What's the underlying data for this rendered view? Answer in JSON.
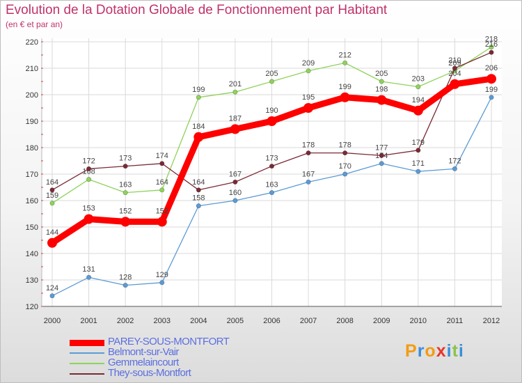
{
  "chart_data": {
    "type": "line",
    "title": "Evolution de la Dotation Globale de Fonctionnement par Habitant",
    "subtitle": "(en € et par an)",
    "xlabel": "",
    "ylabel": "",
    "categories": [
      "2000",
      "2001",
      "2002",
      "2003",
      "2004",
      "2005",
      "2006",
      "2007",
      "2008",
      "2009",
      "2010",
      "2011",
      "2012"
    ],
    "ylim": [
      120,
      220
    ],
    "yticks": [
      120,
      130,
      140,
      150,
      160,
      170,
      180,
      190,
      200,
      210,
      220
    ],
    "grid": true,
    "legend_position": "bottom-left",
    "series": [
      {
        "name": "PAREY-SOUS-MONTFORT",
        "color": "#ff0000",
        "values": [
          144,
          153,
          152,
          152,
          184,
          187,
          190,
          195,
          199,
          198,
          194,
          204,
          206
        ]
      },
      {
        "name": "Belmont-sur-Vair",
        "color": "#5b9bd5",
        "values": [
          124,
          131,
          128,
          129,
          158,
          160,
          163,
          167,
          170,
          174,
          171,
          172,
          199
        ]
      },
      {
        "name": "Gemmelaincourt",
        "color": "#8ed35a",
        "values": [
          159,
          168,
          163,
          164,
          199,
          201,
          205,
          209,
          212,
          205,
          203,
          209,
          218
        ]
      },
      {
        "name": "They-sous-Montfort",
        "color": "#7a2a35",
        "values": [
          164,
          172,
          173,
          174,
          164,
          167,
          173,
          178,
          178,
          177,
          179,
          210,
          216
        ]
      }
    ]
  },
  "logo": {
    "letters": [
      "P",
      "r",
      "o",
      "x",
      "i",
      "t",
      "i"
    ],
    "colors": [
      "#f39c12",
      "#3a8fd8",
      "#f39c12",
      "#e8362a",
      "#3a8fd8",
      "#8bc34a",
      "#3a8fd8"
    ]
  }
}
